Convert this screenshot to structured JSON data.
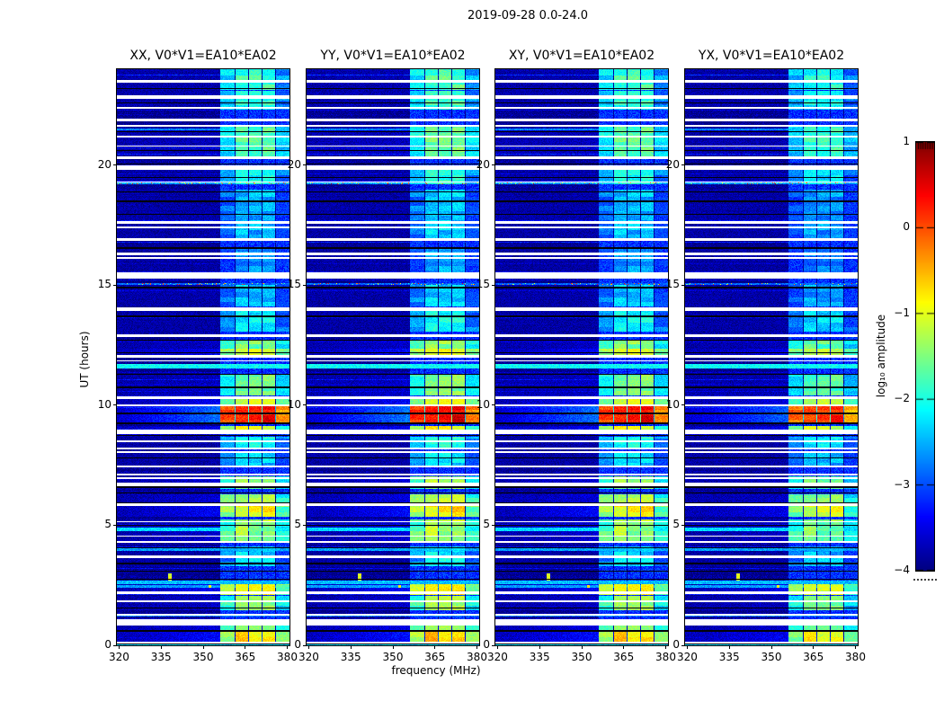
{
  "colors": {
    "background": "#ffffff",
    "text": "#000000"
  },
  "chart_data": {
    "type": "heatmap",
    "title": "2019-09-28 0.0-24.0",
    "xlabel": "frequency (MHz)",
    "ylabel": "UT (hours)",
    "x_ticks": [
      "320",
      "335",
      "350",
      "365",
      "380"
    ],
    "x_tick_values": [
      320,
      335,
      350,
      365,
      380
    ],
    "y_ticks": [
      "0",
      "5",
      "10",
      "15",
      "20"
    ],
    "y_tick_values": [
      0,
      5,
      10,
      15,
      20
    ],
    "freq_range": [
      319.2,
      380.8
    ],
    "time_range": [
      0,
      24
    ],
    "grid": false,
    "panels": [
      {
        "key": "xx",
        "label": "XX, V0*V1=EA10*EA02",
        "seed": 11,
        "gain": 0
      },
      {
        "key": "yy",
        "label": "YY, V0*V1=EA10*EA02",
        "seed": 22,
        "gain": 0.12
      },
      {
        "key": "xy",
        "label": "XY, V0*V1=EA10*EA02",
        "seed": 33,
        "gain": 0.05
      },
      {
        "key": "yx",
        "label": "YX, V0*V1=EA10*EA02",
        "seed": 44,
        "gain": -0.15
      }
    ],
    "colorbar": {
      "label": "log₁₀ amplitude",
      "ticks": [
        "1",
        "0",
        "−1",
        "−2",
        "−3",
        "−4"
      ],
      "tick_values": [
        1,
        0,
        -1,
        -2,
        -3,
        -4
      ],
      "vmin": -4,
      "vmax": 1,
      "colormap": "jet",
      "position": "right"
    },
    "features": {
      "band": {
        "f_start": 356.2,
        "f_end": 380.7,
        "base_amp": -3.15,
        "separators": [
          361.4,
          366.2,
          371.0,
          375.8
        ],
        "separator_width": 0.55
      },
      "blocks": [
        [
          0.15,
          0.62,
          -0.8
        ],
        [
          0.62,
          1.05,
          -1.25
        ],
        [
          1.45,
          2.05,
          -1.5
        ],
        [
          2.1,
          2.55,
          -0.9
        ],
        [
          3.3,
          4.1,
          -2.3
        ],
        [
          4.35,
          5.25,
          -1.4
        ],
        [
          5.35,
          5.9,
          -0.9
        ],
        [
          5.95,
          6.3,
          -1.3
        ],
        [
          6.5,
          7.05,
          -1.4
        ],
        [
          7.4,
          8.05,
          -2.4
        ],
        [
          8.2,
          8.7,
          -2.05
        ],
        [
          8.8,
          9.15,
          -1.1
        ],
        [
          9.2,
          10.0,
          0.35
        ],
        [
          10.05,
          10.35,
          -1.0
        ],
        [
          10.4,
          11.3,
          -1.6
        ],
        [
          12.05,
          12.35,
          -0.95
        ],
        [
          12.35,
          12.7,
          -1.55
        ],
        [
          13.05,
          14.05,
          -2.2
        ],
        [
          14.1,
          15.0,
          -2.45
        ],
        [
          15.4,
          16.6,
          -2.7
        ],
        [
          16.9,
          19.0,
          -2.5
        ],
        [
          19.2,
          19.95,
          -2.1
        ],
        [
          20.35,
          21.65,
          -1.7
        ],
        [
          22.3,
          23.1,
          -2.0
        ],
        [
          23.15,
          24.0,
          -1.9
        ]
      ],
      "white_gaps": [
        [
          0.11,
          0.07
        ],
        [
          0.95,
          0.28
        ],
        [
          1.27,
          0.08
        ],
        [
          1.85,
          0.08
        ],
        [
          2.2,
          0.11
        ],
        [
          3.7,
          0.11
        ],
        [
          4.3,
          0.07
        ],
        [
          4.55,
          0.07
        ],
        [
          5.15,
          0.07
        ],
        [
          5.85,
          0.11
        ],
        [
          6.7,
          0.15
        ],
        [
          6.95,
          0.07
        ],
        [
          7.1,
          0.07
        ],
        [
          7.45,
          0.07
        ],
        [
          8.05,
          0.07
        ],
        [
          8.2,
          0.07
        ],
        [
          8.5,
          0.07
        ],
        [
          8.9,
          0.19
        ],
        [
          10.0,
          0.07
        ],
        [
          10.3,
          0.11
        ],
        [
          11.85,
          0.07
        ],
        [
          12.05,
          0.11
        ],
        [
          12.9,
          0.11
        ],
        [
          14.0,
          0.15
        ],
        [
          15.4,
          0.26
        ],
        [
          16.15,
          0.07
        ],
        [
          16.3,
          0.11
        ],
        [
          16.9,
          0.11
        ],
        [
          17.4,
          0.07
        ],
        [
          17.6,
          0.11
        ],
        [
          19.3,
          0.07
        ],
        [
          19.9,
          0.19
        ],
        [
          20.3,
          0.11
        ],
        [
          20.8,
          0.07
        ],
        [
          21.2,
          0.07
        ],
        [
          21.65,
          0.07
        ],
        [
          21.9,
          0.11
        ],
        [
          22.4,
          0.07
        ],
        [
          22.85,
          0.15
        ],
        [
          23.5,
          0.11
        ]
      ],
      "black_lines": [
        [
          0.05,
          0.05
        ],
        [
          0.6,
          0.06
        ],
        [
          1.55,
          0.05
        ],
        [
          2.75,
          0.05
        ],
        [
          3.1,
          0.05
        ],
        [
          3.4,
          0.06
        ],
        [
          4.05,
          0.05
        ],
        [
          5.0,
          0.05
        ],
        [
          5.95,
          0.04
        ],
        [
          6.35,
          0.05
        ],
        [
          6.6,
          0.06
        ],
        [
          7.8,
          0.06
        ],
        [
          8.75,
          0.05
        ],
        [
          9.25,
          0.06
        ],
        [
          9.65,
          0.06
        ],
        [
          10.75,
          0.06
        ],
        [
          11.3,
          0.05
        ],
        [
          12.2,
          0.04
        ],
        [
          12.7,
          0.05
        ],
        [
          13.7,
          0.08
        ],
        [
          14.9,
          0.06
        ],
        [
          16.55,
          0.07
        ],
        [
          17.95,
          0.06
        ],
        [
          18.5,
          0.06
        ],
        [
          18.9,
          0.05
        ],
        [
          19.5,
          0.05
        ],
        [
          20.05,
          0.05
        ],
        [
          20.6,
          0.05
        ],
        [
          21.4,
          0.05
        ],
        [
          22.6,
          0.06
        ],
        [
          23.2,
          0.05
        ]
      ],
      "full_rows": [
        {
          "t": 0.05,
          "w": 0.1,
          "amp": -2.3
        },
        {
          "t": 1.25,
          "w": 0.08,
          "amp": -2.7
        },
        {
          "t": 2.45,
          "w": 0.09,
          "amp": -2.6
        },
        {
          "t": 2.62,
          "w": 0.16,
          "amp": -2.45
        },
        {
          "t": 4.0,
          "w": 0.1,
          "amp": -2.6
        },
        {
          "t": 4.83,
          "w": 0.12,
          "amp": -2.3
        },
        {
          "t": 11.62,
          "w": 0.18,
          "amp": -2.1
        },
        {
          "t": 15.05,
          "w": 0.1,
          "amp": -2.9,
          "speckle": true
        },
        {
          "t": 19.25,
          "w": 0.1,
          "amp": -2.6,
          "speckle": true
        },
        {
          "t": 21.5,
          "w": 0.08,
          "amp": -2.75
        }
      ],
      "blips": [
        {
          "f": 338,
          "t": 2.85,
          "df": 1.3,
          "dt": 0.28,
          "amp": -1.0
        },
        {
          "f": 352.5,
          "t": 2.45,
          "df": 0.9,
          "dt": 0.09,
          "amp": -0.85
        }
      ],
      "noise": {
        "row_base": -3.92,
        "row_jitter": 0.12,
        "bright_row_prob": 0.08,
        "pixel_jitter": 0.55
      }
    }
  }
}
